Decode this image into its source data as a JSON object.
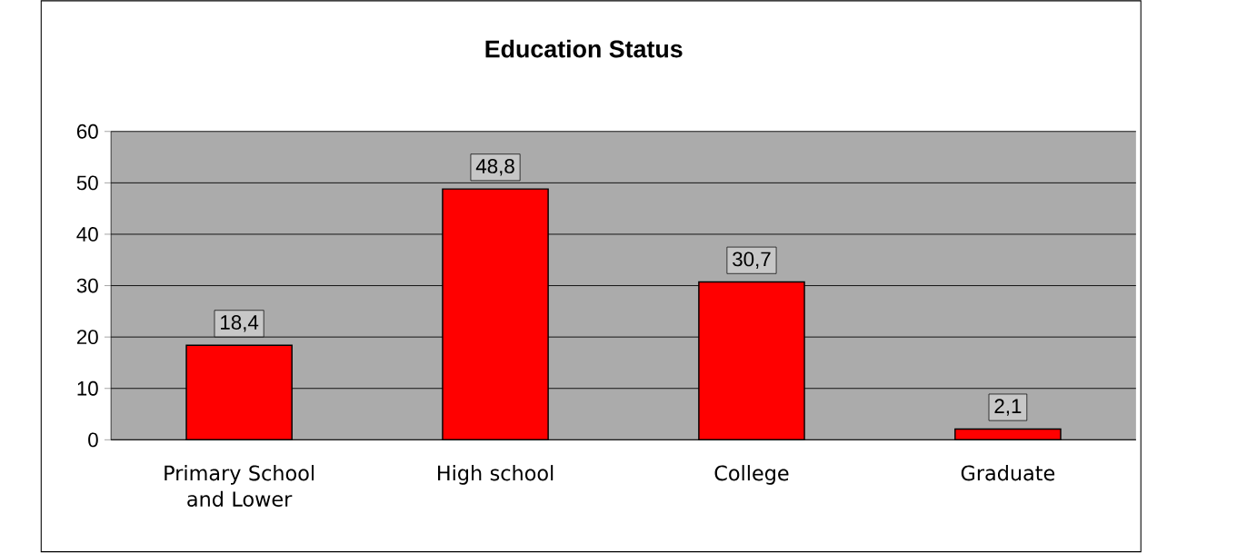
{
  "chart_data": {
    "type": "bar",
    "title": "Education Status",
    "categories": [
      "Primary School and Lower",
      "High school",
      "College",
      "Graduate"
    ],
    "values": [
      18.4,
      48.8,
      30.7,
      2.1
    ],
    "value_labels": [
      "18,4",
      "48,8",
      "30,7",
      "2,1"
    ],
    "color": "#ff0000",
    "ylim": [
      0,
      60
    ],
    "yticks": [
      0,
      10,
      20,
      30,
      40,
      50,
      60
    ],
    "grid": "y"
  }
}
